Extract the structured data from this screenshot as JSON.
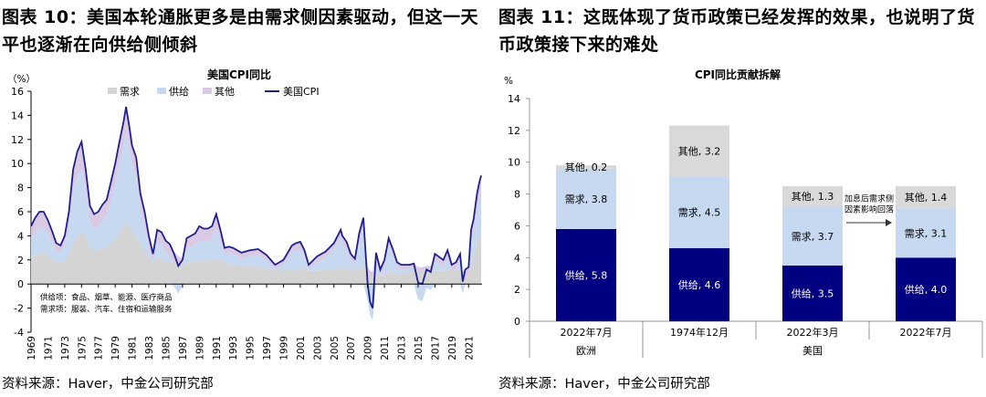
{
  "left": {
    "figure_title": "图表 10：美国本轮通胀更多是由需求侧因素驱动，但这一天平也逐渐在向供给侧倾斜",
    "source": "资料来源：Haver，中金公司研究部",
    "chart_data": {
      "type": "area",
      "title": "美国CPI同比",
      "unit_label": "（%）",
      "ylim": [
        -4,
        16
      ],
      "yticks": [
        -4,
        -2,
        0,
        2,
        4,
        6,
        8,
        10,
        12,
        14,
        16
      ],
      "xlim": [
        1969,
        2022.6
      ],
      "xticks": [
        1969,
        1971,
        1973,
        1975,
        1977,
        1979,
        1981,
        1983,
        1985,
        1987,
        1989,
        1991,
        1993,
        1995,
        1997,
        1999,
        2001,
        2003,
        2005,
        2007,
        2009,
        2011,
        2013,
        2015,
        2017,
        2019,
        2021
      ],
      "legend": [
        "需求",
        "供给",
        "其他",
        "美国CPI"
      ],
      "legend_position": "top",
      "annotations": [
        "供给项：食品、烟草、能源、医疗商品",
        "需求项：服装、汽车、住宿和运输服务"
      ],
      "colors": {
        "demand": "#d4d4d4",
        "supply": "#c6d9f0",
        "other": "#d9c9e3",
        "cpi": "#1f1f8c"
      },
      "x": [
        1969.0,
        1969.5,
        1970.0,
        1970.5,
        1971.0,
        1971.5,
        1972.0,
        1972.5,
        1973.0,
        1973.5,
        1974.0,
        1974.5,
        1975.0,
        1975.5,
        1976.0,
        1976.5,
        1977.0,
        1977.5,
        1978.0,
        1978.5,
        1979.0,
        1979.5,
        1980.0,
        1980.3,
        1980.7,
        1981.0,
        1981.5,
        1982.0,
        1982.5,
        1983.0,
        1983.5,
        1984.0,
        1984.5,
        1985.0,
        1985.5,
        1986.0,
        1986.5,
        1987.0,
        1987.5,
        1988.0,
        1988.5,
        1989.0,
        1989.5,
        1990.0,
        1990.5,
        1991.0,
        1991.5,
        1992.0,
        1992.5,
        1993.0,
        1994.0,
        1995.0,
        1996.0,
        1997.0,
        1998.0,
        1999.0,
        2000.0,
        2000.5,
        2001.0,
        2001.5,
        2002.0,
        2003.0,
        2004.0,
        2005.0,
        2005.8,
        2006.0,
        2006.5,
        2007.0,
        2007.5,
        2008.0,
        2008.5,
        2009.0,
        2009.3,
        2009.6,
        2010.0,
        2010.5,
        2011.0,
        2011.5,
        2012.0,
        2012.5,
        2013.0,
        2014.0,
        2014.5,
        2015.0,
        2015.5,
        2016.0,
        2016.5,
        2017.0,
        2018.0,
        2018.5,
        2019.0,
        2019.5,
        2020.0,
        2020.3,
        2020.6,
        2021.0,
        2021.3,
        2021.6,
        2022.0,
        2022.3,
        2022.5
      ],
      "series": [
        {
          "name": "美国CPI",
          "values": [
            4.8,
            5.5,
            6.0,
            6.0,
            5.3,
            4.4,
            3.4,
            3.2,
            4.0,
            6.0,
            9.5,
            11.0,
            11.8,
            9.5,
            6.5,
            5.8,
            6.0,
            6.6,
            7.0,
            8.5,
            10.0,
            11.8,
            13.5,
            14.7,
            13.0,
            11.5,
            10.5,
            7.5,
            6.0,
            4.0,
            2.5,
            4.5,
            4.3,
            3.6,
            3.3,
            2.5,
            1.5,
            2.0,
            3.8,
            4.0,
            4.2,
            4.8,
            4.6,
            4.6,
            4.8,
            5.8,
            4.5,
            3.0,
            3.1,
            3.0,
            2.6,
            2.8,
            2.9,
            2.4,
            1.6,
            2.0,
            3.2,
            3.4,
            3.5,
            2.8,
            1.6,
            2.3,
            2.7,
            3.4,
            4.5,
            4.0,
            3.5,
            2.5,
            2.1,
            4.2,
            5.5,
            0.0,
            -1.5,
            -2.0,
            2.6,
            1.2,
            2.0,
            3.8,
            2.9,
            1.8,
            1.6,
            1.6,
            1.7,
            0.1,
            0.0,
            1.2,
            1.0,
            2.5,
            2.0,
            2.8,
            1.6,
            1.8,
            2.5,
            0.2,
            1.2,
            1.4,
            4.5,
            5.4,
            7.5,
            8.5,
            9.0
          ]
        },
        {
          "name": "需求",
          "values": [
            2.2,
            2.4,
            2.6,
            2.6,
            2.4,
            2.1,
            1.8,
            1.7,
            1.9,
            2.5,
            3.4,
            4.0,
            4.4,
            4.0,
            3.0,
            2.7,
            2.8,
            2.9,
            3.0,
            3.4,
            3.7,
            4.2,
            4.8,
            5.0,
            4.7,
            4.3,
            4.0,
            3.2,
            2.8,
            2.2,
            1.8,
            2.2,
            2.1,
            1.9,
            1.8,
            1.7,
            1.8,
            1.6,
            1.7,
            1.8,
            1.9,
            1.9,
            1.9,
            1.9,
            2.0,
            2.1,
            2.0,
            1.8,
            1.7,
            1.6,
            1.5,
            1.5,
            1.4,
            1.3,
            1.2,
            1.1,
            1.2,
            1.2,
            1.3,
            1.3,
            1.1,
            1.1,
            1.2,
            1.2,
            1.3,
            1.3,
            1.3,
            1.2,
            1.2,
            1.3,
            1.4,
            1.0,
            0.7,
            0.6,
            0.7,
            0.7,
            0.8,
            1.0,
            1.0,
            0.9,
            0.9,
            1.0,
            1.0,
            1.0,
            1.0,
            1.1,
            1.1,
            1.1,
            1.1,
            1.2,
            1.1,
            1.1,
            1.2,
            0.6,
            0.5,
            0.8,
            1.8,
            2.4,
            3.6,
            3.8,
            4.0
          ]
        },
        {
          "name": "供给",
          "values": [
            1.6,
            1.9,
            2.1,
            2.1,
            1.8,
            1.4,
            0.9,
            0.9,
            1.3,
            2.4,
            4.4,
            5.0,
            5.2,
            3.8,
            2.2,
            1.9,
            2.0,
            2.4,
            2.6,
            3.6,
            4.6,
            5.7,
            6.8,
            7.6,
            6.6,
            5.6,
            4.9,
            3.0,
            2.0,
            0.8,
            0.1,
            1.3,
            1.2,
            0.8,
            0.6,
            -0.2,
            -0.8,
            -0.1,
            1.3,
            1.3,
            1.3,
            1.8,
            1.6,
            1.7,
            1.7,
            2.5,
            1.5,
            0.7,
            0.9,
            0.9,
            0.6,
            0.8,
            1.0,
            0.7,
            0.1,
            0.5,
            1.5,
            1.6,
            1.6,
            1.0,
            0.1,
            0.7,
            1.0,
            1.7,
            2.6,
            2.1,
            1.6,
            0.8,
            0.4,
            2.1,
            3.3,
            -1.4,
            -2.6,
            -3.0,
            1.4,
            0.0,
            0.7,
            2.2,
            1.4,
            0.5,
            0.3,
            0.3,
            0.3,
            -1.3,
            -1.4,
            -0.3,
            -0.5,
            0.8,
            0.4,
            1.0,
            0.0,
            0.2,
            0.7,
            -0.8,
            0.1,
            0.0,
            1.8,
            2.0,
            2.7,
            3.4,
            3.6
          ]
        },
        {
          "name": "其他",
          "values": [
            1.0,
            1.2,
            1.3,
            1.3,
            1.1,
            0.9,
            0.7,
            0.6,
            0.8,
            1.1,
            1.7,
            2.0,
            2.2,
            1.7,
            1.3,
            1.2,
            1.2,
            1.3,
            1.4,
            1.5,
            1.7,
            1.9,
            1.9,
            2.1,
            1.7,
            1.6,
            1.6,
            1.3,
            1.2,
            1.0,
            0.6,
            1.0,
            1.0,
            0.9,
            0.9,
            1.0,
            0.5,
            0.5,
            0.8,
            0.9,
            1.0,
            1.1,
            1.1,
            1.0,
            1.1,
            1.2,
            1.0,
            0.5,
            0.5,
            0.5,
            0.5,
            0.5,
            0.5,
            0.4,
            0.3,
            0.4,
            0.5,
            0.6,
            0.6,
            0.5,
            0.4,
            0.5,
            0.5,
            0.5,
            0.6,
            0.6,
            0.6,
            0.5,
            0.5,
            0.8,
            0.8,
            0.4,
            0.4,
            0.4,
            0.5,
            0.5,
            0.5,
            0.6,
            0.5,
            0.4,
            0.4,
            0.3,
            0.4,
            0.4,
            0.4,
            0.4,
            0.4,
            0.6,
            0.5,
            0.6,
            0.5,
            0.5,
            0.6,
            0.4,
            0.6,
            0.6,
            0.9,
            1.0,
            1.2,
            1.3,
            1.4
          ]
        }
      ]
    }
  },
  "right": {
    "figure_title": "图表 11：这既体现了货币政策已经发挥的效果，也说明了货币政策接下来的难处",
    "source": "资料来源：Haver，中金公司研究部",
    "chart_data": {
      "type": "bar",
      "stacked": true,
      "title": "CPI同比贡献拆解",
      "unit_label": "%",
      "ylim": [
        0,
        14
      ],
      "yticks": [
        0,
        2,
        4,
        6,
        8,
        10,
        12,
        14
      ],
      "categories": [
        "2022年7月",
        "1974年12月",
        "2022年3月",
        "2022年7月"
      ],
      "groups": [
        {
          "label": "欧洲",
          "categories": [
            0
          ]
        },
        {
          "label": "美国",
          "categories": [
            1,
            2,
            3
          ]
        }
      ],
      "series": [
        {
          "name": "供给",
          "label": "供给",
          "color": "#000080",
          "label_color": "#ffffff",
          "values": [
            5.8,
            4.6,
            3.5,
            4.0
          ]
        },
        {
          "name": "需求",
          "label": "需求",
          "color": "#c6d9f0",
          "label_color": "#000000",
          "values": [
            3.8,
            4.5,
            3.7,
            3.1
          ]
        },
        {
          "name": "其他",
          "label": "其他",
          "color": "#d9d9d9",
          "label_color": "#000000",
          "values": [
            0.2,
            3.2,
            1.3,
            1.4
          ]
        }
      ],
      "arrow_annotation": "加息后需求侧因素影响回落",
      "arrow_annotation_lines": [
        "加息后需求侧",
        "因素影响回落"
      ]
    }
  }
}
